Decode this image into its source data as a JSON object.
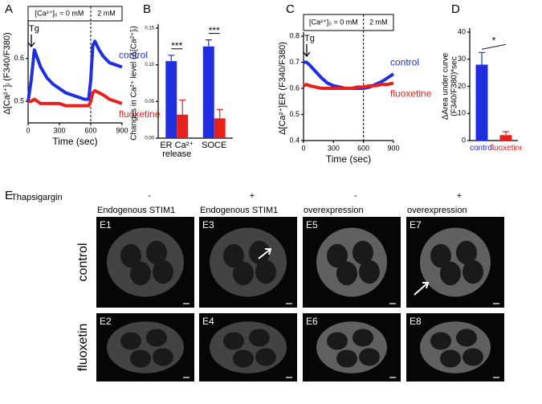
{
  "chart_data": [
    {
      "type": "line",
      "panel": "A",
      "header_left": "[Ca²⁺]₀ = 0 mM",
      "header_right": "2 mM",
      "marker": "Tg",
      "x_label": "Time (sec)",
      "y_label": "Δ[Ca²⁺]ᵢ (F340/F380)",
      "x": [
        0,
        30,
        60,
        90,
        120,
        180,
        240,
        300,
        360,
        420,
        480,
        540,
        580,
        600,
        620,
        640,
        680,
        720,
        780,
        840,
        900
      ],
      "series": [
        {
          "name": "control",
          "color": "#1f2fe0",
          "values": [
            0.5,
            0.55,
            0.62,
            0.6,
            0.58,
            0.555,
            0.54,
            0.53,
            0.52,
            0.515,
            0.51,
            0.505,
            0.505,
            0.55,
            0.63,
            0.64,
            0.62,
            0.605,
            0.59,
            0.585,
            0.58
          ]
        },
        {
          "name": "fluoxetine",
          "color": "#e8201c",
          "values": [
            0.5,
            0.5,
            0.505,
            0.5,
            0.495,
            0.495,
            0.495,
            0.495,
            0.49,
            0.49,
            0.49,
            0.49,
            0.49,
            0.5,
            0.52,
            0.525,
            0.52,
            0.515,
            0.505,
            0.5,
            0.495
          ]
        }
      ],
      "xlim": [
        0,
        900
      ],
      "xticks": [
        0,
        300,
        600,
        900
      ],
      "ylim": [
        0.45,
        0.68
      ],
      "yticks": [
        0.5,
        0.6
      ],
      "vline": 600
    },
    {
      "type": "bar",
      "panel": "B",
      "y_label": "Changes in Ca²⁺ level (Δ[Ca²⁺]ᵢ)",
      "categories": [
        "ER Ca²⁺ release",
        "SOCE"
      ],
      "series": [
        {
          "color": "#1f2fe0",
          "values": [
            0.105,
            0.125
          ],
          "errors": [
            0.008,
            0.009
          ]
        },
        {
          "color": "#e8201c",
          "values": [
            0.032,
            0.027
          ],
          "errors": [
            0.02,
            0.012
          ]
        }
      ],
      "significance": [
        "***",
        "***"
      ],
      "ylim": [
        0,
        0.15
      ],
      "yticks": [
        {
          "value": 0,
          "label": "0.00"
        },
        {
          "value": 0.05,
          "label": "0.05"
        },
        {
          "value": 0.1,
          "label": "0.10"
        },
        {
          "value": 0.15,
          "label": "0.15"
        }
      ]
    },
    {
      "type": "line",
      "panel": "C",
      "header_left": "[Ca²⁺]₀ = 0 mM",
      "header_right": "2 mM",
      "marker": "Tg",
      "x_label": "Time (sec)",
      "y_label": "Δ[Ca²⁺]ER (F340/F380)",
      "x": [
        0,
        30,
        60,
        120,
        180,
        240,
        300,
        360,
        420,
        480,
        540,
        600,
        660,
        720,
        780,
        840,
        900
      ],
      "series": [
        {
          "name": "control",
          "color": "#1f2fe0",
          "values": [
            0.7,
            0.7,
            0.69,
            0.665,
            0.64,
            0.62,
            0.61,
            0.605,
            0.6,
            0.6,
            0.6,
            0.6,
            0.605,
            0.615,
            0.625,
            0.64,
            0.655
          ]
        },
        {
          "name": "fluoxetine",
          "color": "#e8201c",
          "values": [
            0.61,
            0.615,
            0.61,
            0.605,
            0.6,
            0.6,
            0.6,
            0.6,
            0.6,
            0.6,
            0.605,
            0.605,
            0.61,
            0.61,
            0.615,
            0.615,
            0.62
          ]
        }
      ],
      "xlim": [
        0,
        900
      ],
      "xticks": [
        0,
        300,
        600,
        900
      ],
      "ylim": [
        0.4,
        0.8
      ],
      "yticks": [
        0.4,
        0.5,
        0.6,
        0.7,
        0.8
      ],
      "vline": 600
    },
    {
      "type": "bar",
      "panel": "D",
      "y_label": "ΔArea under curve (F340/F380)*sec",
      "categories": [
        "control",
        "fluoxetine"
      ],
      "category_colors": [
        "#1f2fe0",
        "#e8201c"
      ],
      "series": [
        {
          "colors": [
            "#1f2fe0",
            "#e8201c"
          ],
          "values": [
            28,
            2
          ],
          "errors": [
            4.5,
            1.3
          ]
        }
      ],
      "significance": [
        "*"
      ],
      "ylim": [
        0,
        40
      ],
      "yticks": [
        0,
        10,
        20,
        30,
        40
      ]
    }
  ],
  "panel_e": {
    "panel": "E",
    "treatment": "Thapsigargin",
    "signs": [
      "-",
      "+",
      "-",
      "+"
    ],
    "headers": [
      "Endogenous STIM1",
      "Endogenous STIM1",
      "overexpression",
      "overexpression"
    ],
    "row_labels": [
      "control",
      "fluoxetin"
    ],
    "panels": [
      [
        "E1",
        "E3",
        "E5",
        "E7"
      ],
      [
        "E2",
        "E4",
        "E6",
        "E8"
      ]
    ]
  }
}
